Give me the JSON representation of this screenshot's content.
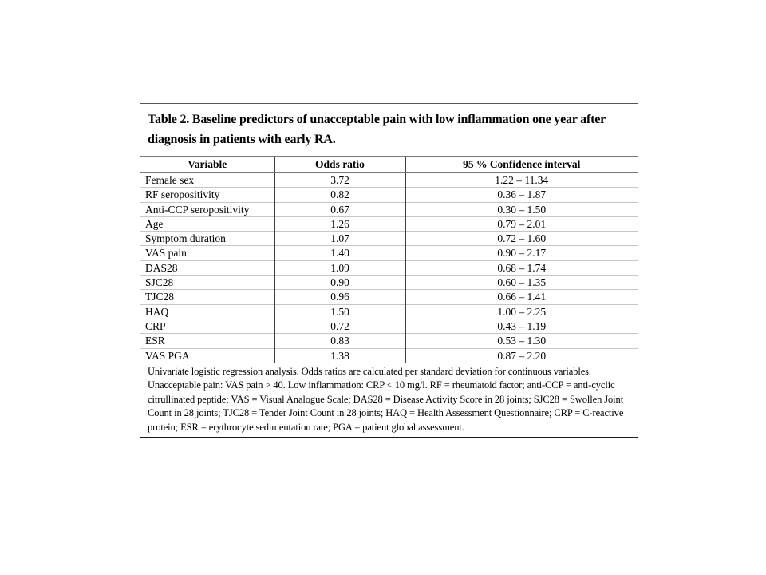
{
  "page": {
    "background": "#ffffff"
  },
  "table": {
    "title": "Table 2. Baseline predictors of unacceptable pain with low inflammation one year after diagnosis in patients with early RA.",
    "columns": [
      "Variable",
      "Odds ratio",
      "95 % Confidence interval"
    ],
    "rows": [
      {
        "variable": "Female sex",
        "odds_ratio": "3.72",
        "ci": "1.22 – 11.34"
      },
      {
        "variable": "RF seropositivity",
        "odds_ratio": "0.82",
        "ci": "0.36 – 1.87"
      },
      {
        "variable": "Anti-CCP seropositivity",
        "odds_ratio": "0.67",
        "ci": "0.30 – 1.50"
      },
      {
        "variable": "Age",
        "odds_ratio": "1.26",
        "ci": "0.79 – 2.01"
      },
      {
        "variable": "Symptom duration",
        "odds_ratio": "1.07",
        "ci": "0.72 – 1.60"
      },
      {
        "variable": "VAS pain",
        "odds_ratio": "1.40",
        "ci": "0.90 – 2.17"
      },
      {
        "variable": "DAS28",
        "odds_ratio": "1.09",
        "ci": "0.68 – 1.74"
      },
      {
        "variable": "SJC28",
        "odds_ratio": "0.90",
        "ci": "0.60 – 1.35"
      },
      {
        "variable": "TJC28",
        "odds_ratio": "0.96",
        "ci": "0.66 – 1.41"
      },
      {
        "variable": "HAQ",
        "odds_ratio": "1.50",
        "ci": "1.00 – 2.25"
      },
      {
        "variable": "CRP",
        "odds_ratio": "0.72",
        "ci": "0.43 – 1.19"
      },
      {
        "variable": "ESR",
        "odds_ratio": "0.83",
        "ci": "0.53 – 1.30"
      },
      {
        "variable": "VAS PGA",
        "odds_ratio": "1.38",
        "ci": "0.87 – 2.20"
      }
    ],
    "footnote": "Univariate logistic regression analysis. Odds ratios are calculated per standard deviation for continuous variables. Unacceptable pain: VAS pain > 40. Low inflammation: CRP < 10 mg/l. RF = rheumatoid factor; anti-CCP = anti-cyclic citrullinated peptide; VAS = Visual Analogue Scale; DAS28 = Disease Activity Score in 28 joints; SJC28 = Swollen Joint Count in 28 joints; TJC28 = Tender Joint Count in 28 joints; HAQ = Health Assessment Questionnaire; CRP = C-reactive protein; ESR = erythrocyte sedimentation rate; PGA = patient global assessment.",
    "colors": {
      "text": "#000000",
      "outer_border": "#555555",
      "column_divider": "#3f3f3f",
      "row_line": "#c6c6c6",
      "header_line": "#767676"
    }
  }
}
